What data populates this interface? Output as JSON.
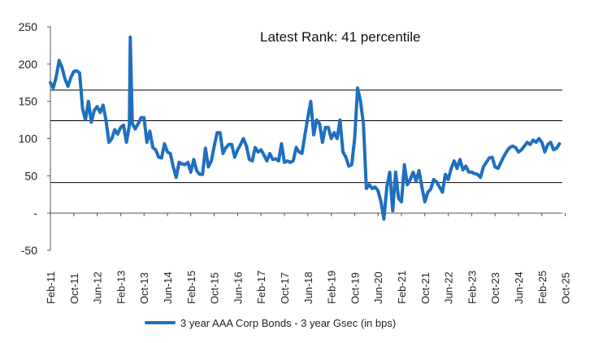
{
  "chart_data": {
    "type": "line",
    "title": "",
    "annotation": "Latest Rank: 41 percentile",
    "xlabel": "",
    "ylabel": "",
    "ylim": [
      -50,
      250
    ],
    "y_ticks": [
      250,
      200,
      150,
      100,
      50,
      0,
      -50
    ],
    "y_tick_labels": [
      "250",
      "200",
      "150",
      "100",
      "50",
      "-",
      "-50"
    ],
    "x_tick_labels": [
      "Feb-11",
      "Oct-11",
      "Jun-12",
      "Feb-13",
      "Oct-13",
      "Jun-14",
      "Feb-15",
      "Oct-15",
      "Jun-16",
      "Feb-17",
      "Oct-17",
      "Jun-18",
      "Feb-19",
      "Oct-19",
      "Jun-20",
      "Feb-21",
      "Oct-21",
      "Jun-22",
      "Feb-23",
      "Oct-23",
      "Jun-24",
      "Feb-25",
      "Oct-25"
    ],
    "reference_lines": [
      165,
      124,
      41
    ],
    "grid": false,
    "legend_position": "bottom",
    "colors": {
      "series": "#1f6fc0",
      "reference": "#000000",
      "axis": "#555555"
    },
    "series": [
      {
        "name": "3 year AAA Corp Bonds - 3 year Gsec (in bps)",
        "values": [
          [
            0,
            175
          ],
          [
            1,
            168
          ],
          [
            2,
            183
          ],
          [
            3,
            205
          ],
          [
            4,
            195
          ],
          [
            5,
            180
          ],
          [
            6,
            170
          ],
          [
            7,
            182
          ],
          [
            8,
            190
          ],
          [
            9,
            191
          ],
          [
            10,
            188
          ],
          [
            11,
            140
          ],
          [
            12,
            125
          ],
          [
            13,
            150
          ],
          [
            14,
            122
          ],
          [
            15,
            138
          ],
          [
            16,
            143
          ],
          [
            17,
            135
          ],
          [
            18,
            145
          ],
          [
            19,
            125
          ],
          [
            20,
            95
          ],
          [
            21,
            100
          ],
          [
            22,
            112
          ],
          [
            23,
            106
          ],
          [
            24,
            115
          ],
          [
            25,
            118
          ],
          [
            26,
            95
          ],
          [
            27,
            118
          ],
          [
            27.3,
            236
          ],
          [
            28,
            120
          ],
          [
            29,
            113
          ],
          [
            30,
            120
          ],
          [
            31,
            128
          ],
          [
            32,
            128
          ],
          [
            33,
            95
          ],
          [
            34,
            110
          ],
          [
            35,
            88
          ],
          [
            36,
            85
          ],
          [
            37,
            75
          ],
          [
            38,
            74
          ],
          [
            39,
            93
          ],
          [
            40,
            82
          ],
          [
            41,
            80
          ],
          [
            42,
            62
          ],
          [
            43,
            48
          ],
          [
            44,
            68
          ],
          [
            45,
            66
          ],
          [
            46,
            65
          ],
          [
            47,
            68
          ],
          [
            48,
            55
          ],
          [
            49,
            72
          ],
          [
            50,
            57
          ],
          [
            51,
            52
          ],
          [
            52,
            52
          ],
          [
            53,
            87
          ],
          [
            54,
            62
          ],
          [
            55,
            70
          ],
          [
            56,
            90
          ],
          [
            57,
            108
          ],
          [
            58,
            108
          ],
          [
            59,
            80
          ],
          [
            60,
            88
          ],
          [
            61,
            92
          ],
          [
            62,
            92
          ],
          [
            63,
            75
          ],
          [
            64,
            85
          ],
          [
            65,
            92
          ],
          [
            66,
            100
          ],
          [
            67,
            90
          ],
          [
            68,
            72
          ],
          [
            69,
            70
          ],
          [
            70,
            88
          ],
          [
            71,
            82
          ],
          [
            72,
            85
          ],
          [
            73,
            78
          ],
          [
            74,
            70
          ],
          [
            75,
            80
          ],
          [
            76,
            72
          ],
          [
            77,
            73
          ],
          [
            78,
            70
          ],
          [
            79,
            93
          ],
          [
            80,
            68
          ],
          [
            81,
            70
          ],
          [
            82,
            68
          ],
          [
            83,
            70
          ],
          [
            84,
            88
          ],
          [
            85,
            82
          ],
          [
            86,
            80
          ],
          [
            87,
            105
          ],
          [
            88,
            128
          ],
          [
            89,
            150
          ],
          [
            90,
            105
          ],
          [
            91,
            125
          ],
          [
            92,
            120
          ],
          [
            93,
            95
          ],
          [
            94,
            115
          ],
          [
            95,
            115
          ],
          [
            96,
            100
          ],
          [
            97,
            108
          ],
          [
            98,
            100
          ],
          [
            99,
            125
          ],
          [
            100,
            82
          ],
          [
            101,
            75
          ],
          [
            102,
            63
          ],
          [
            103,
            65
          ],
          [
            104,
            100
          ],
          [
            105,
            168
          ],
          [
            106,
            150
          ],
          [
            107,
            120
          ],
          [
            108,
            33
          ],
          [
            109,
            38
          ],
          [
            110,
            33
          ],
          [
            111,
            35
          ],
          [
            112,
            30
          ],
          [
            113,
            15
          ],
          [
            114,
            -8
          ],
          [
            115,
            35
          ],
          [
            116,
            55
          ],
          [
            117,
            3
          ],
          [
            118,
            55
          ],
          [
            119,
            20
          ],
          [
            120,
            15
          ],
          [
            121,
            65
          ],
          [
            122,
            38
          ],
          [
            123,
            45
          ],
          [
            124,
            55
          ],
          [
            125,
            43
          ],
          [
            126,
            57
          ],
          [
            127,
            35
          ],
          [
            128,
            15
          ],
          [
            129,
            28
          ],
          [
            130,
            32
          ],
          [
            131,
            45
          ],
          [
            132,
            42
          ],
          [
            133,
            35
          ],
          [
            134,
            28
          ],
          [
            135,
            52
          ],
          [
            136,
            45
          ],
          [
            137,
            60
          ],
          [
            138,
            70
          ],
          [
            139,
            60
          ],
          [
            140,
            72
          ],
          [
            141,
            58
          ],
          [
            142,
            63
          ],
          [
            143,
            55
          ],
          [
            144,
            55
          ],
          [
            145,
            53
          ],
          [
            146,
            52
          ],
          [
            147,
            48
          ],
          [
            148,
            62
          ],
          [
            149,
            68
          ],
          [
            150,
            74
          ],
          [
            151,
            75
          ],
          [
            152,
            62
          ],
          [
            153,
            60
          ],
          [
            154,
            68
          ],
          [
            155,
            76
          ],
          [
            156,
            83
          ],
          [
            157,
            88
          ],
          [
            158,
            90
          ],
          [
            159,
            88
          ],
          [
            160,
            82
          ],
          [
            161,
            85
          ],
          [
            162,
            90
          ],
          [
            163,
            95
          ],
          [
            164,
            92
          ],
          [
            165,
            98
          ],
          [
            166,
            95
          ],
          [
            167,
            100
          ],
          [
            168,
            95
          ],
          [
            169,
            82
          ],
          [
            170,
            92
          ],
          [
            171,
            95
          ],
          [
            172,
            85
          ],
          [
            173,
            87
          ],
          [
            174,
            93
          ]
        ]
      }
    ]
  }
}
